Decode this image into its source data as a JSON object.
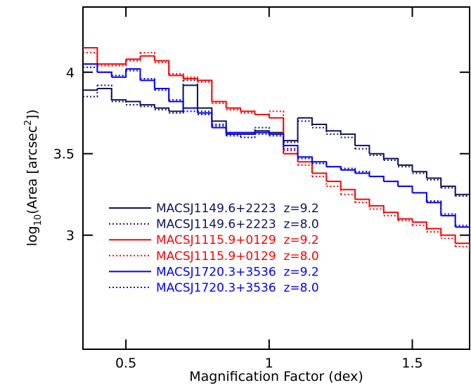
{
  "chart_data": {
    "type": "step",
    "xlabel": "Magnification Factor (dex)",
    "ylabel": [
      "log",
      "10",
      "(Area [arcsec",
      "2",
      "])"
    ],
    "xlim": [
      0.35,
      1.7
    ],
    "ylim": [
      2.3,
      4.4
    ],
    "xticks": [
      0.5,
      1,
      1.5
    ],
    "yticks": [
      3,
      3.5,
      4
    ],
    "legend": "lower left",
    "x": [
      0.35,
      0.4,
      0.45,
      0.5,
      0.55,
      0.6,
      0.65,
      0.7,
      0.75,
      0.8,
      0.85,
      0.9,
      0.95,
      1.0,
      1.05,
      1.1,
      1.15,
      1.2,
      1.25,
      1.3,
      1.35,
      1.4,
      1.45,
      1.5,
      1.55,
      1.6,
      1.65,
      1.7
    ],
    "series": [
      {
        "name": "MACSJ1149.6+2223  z=9.2",
        "color": "#12125e",
        "dash": "solid",
        "values": [
          3.89,
          3.9,
          3.83,
          3.82,
          3.8,
          3.78,
          3.76,
          3.92,
          3.78,
          3.7,
          3.62,
          3.62,
          3.64,
          3.63,
          3.58,
          3.72,
          3.68,
          3.64,
          3.62,
          3.55,
          3.5,
          3.47,
          3.43,
          3.39,
          3.35,
          3.3,
          3.25,
          3.2
        ]
      },
      {
        "name": "MACSJ1149.6+2223  z=8.0",
        "color": "#12125e",
        "dash": "dotted",
        "values": [
          3.85,
          3.92,
          3.82,
          3.8,
          3.79,
          3.77,
          3.75,
          3.95,
          3.76,
          3.68,
          3.61,
          3.6,
          3.66,
          3.62,
          3.57,
          3.7,
          3.66,
          3.62,
          3.6,
          3.53,
          3.49,
          3.46,
          3.42,
          3.38,
          3.34,
          3.29,
          3.24,
          3.19
        ]
      },
      {
        "name": "MACSJ1115.9+0129  z=9.2",
        "color": "#ff0000",
        "dash": "solid",
        "values": [
          4.15,
          4.05,
          4.05,
          4.08,
          4.1,
          4.07,
          3.98,
          3.96,
          3.95,
          3.82,
          3.78,
          3.76,
          3.74,
          3.72,
          3.5,
          3.45,
          3.38,
          3.33,
          3.28,
          3.22,
          3.18,
          3.14,
          3.1,
          3.08,
          3.04,
          3.0,
          2.95,
          2.9
        ]
      },
      {
        "name": "MACSJ1115.9+0129  z=8.0",
        "color": "#ff0000",
        "dash": "dotted",
        "values": [
          4.12,
          4.04,
          4.04,
          4.07,
          4.12,
          4.06,
          3.99,
          3.97,
          3.94,
          3.81,
          3.77,
          3.75,
          3.74,
          3.76,
          3.52,
          3.43,
          3.36,
          3.3,
          3.25,
          3.2,
          3.16,
          3.12,
          3.09,
          3.06,
          3.02,
          2.98,
          2.93,
          2.89
        ]
      },
      {
        "name": "MACSJ1720.3+3536  z=9.2",
        "color": "#0000ff",
        "dash": "solid",
        "values": [
          4.05,
          4.0,
          3.97,
          4.02,
          3.95,
          3.9,
          3.82,
          3.78,
          3.75,
          3.66,
          3.63,
          3.63,
          3.63,
          3.62,
          3.55,
          3.48,
          3.45,
          3.42,
          3.4,
          3.38,
          3.36,
          3.33,
          3.3,
          3.26,
          3.2,
          3.12,
          3.05,
          2.99
        ]
      },
      {
        "name": "MACSJ1720.3+3536  z=8.0",
        "color": "#0000ff",
        "dash": "dotted",
        "values": [
          4.03,
          4.0,
          3.98,
          4.01,
          3.96,
          3.89,
          3.83,
          3.76,
          3.74,
          3.67,
          3.62,
          3.62,
          3.62,
          3.61,
          3.53,
          3.47,
          3.44,
          3.42,
          3.41,
          3.39,
          3.36,
          3.33,
          3.3,
          3.26,
          3.21,
          3.13,
          3.06,
          3.0
        ]
      }
    ]
  }
}
